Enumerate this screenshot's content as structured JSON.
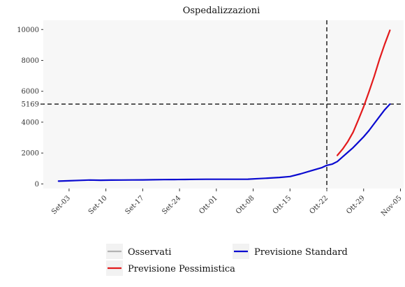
{
  "chart_data": {
    "type": "line",
    "title": "Ospedalizzazioni",
    "xlabel": "",
    "ylabel": "",
    "x_start": "2020-09-01",
    "x_tick_labels": [
      "Set-03",
      "Set-10",
      "Set-17",
      "Set-24",
      "Ott-01",
      "Ott-08",
      "Ott-15",
      "Ott-22",
      "Ott-29",
      "Nov-05"
    ],
    "x_tick_days": [
      2,
      9,
      16,
      23,
      30,
      37,
      44,
      51,
      58,
      65
    ],
    "xlim_days": [
      -2.9,
      65.6
    ],
    "ylim": [
      -300,
      10600
    ],
    "y_ticks": [
      0,
      2000,
      4000,
      5169,
      6000,
      8000,
      10000
    ],
    "grid": false,
    "background": "#f7f7f7",
    "vline_day": 51,
    "hline_value": 5169,
    "legend_position": "bottom",
    "series": [
      {
        "name": "Osservati",
        "color": "#b3b3b3",
        "x_days": [],
        "values": []
      },
      {
        "name": "Previsione Pessimistica",
        "color": "#e31a1c",
        "x_days": [
          53,
          54,
          55,
          56,
          57,
          58,
          59,
          60,
          61,
          62,
          63
        ],
        "values": [
          1850,
          2250,
          2750,
          3350,
          4150,
          5000,
          5950,
          6950,
          8050,
          9050,
          9950
        ]
      },
      {
        "name": "Previsione Standard",
        "color": "#0a0ad0",
        "x_days": [
          0,
          2,
          4,
          6,
          8,
          10,
          12,
          14,
          16,
          18,
          20,
          22,
          24,
          26,
          28,
          30,
          32,
          34,
          36,
          38,
          40,
          42,
          44,
          46,
          48,
          50,
          51,
          52,
          53,
          54,
          55,
          56,
          57,
          58,
          59,
          60,
          61,
          62,
          63
        ],
        "values": [
          180,
          200,
          230,
          250,
          240,
          245,
          250,
          255,
          260,
          270,
          280,
          285,
          290,
          295,
          300,
          300,
          300,
          300,
          305,
          340,
          380,
          420,
          480,
          650,
          850,
          1050,
          1200,
          1280,
          1450,
          1750,
          2050,
          2350,
          2700,
          3050,
          3450,
          3900,
          4350,
          4800,
          5169
        ]
      }
    ]
  }
}
